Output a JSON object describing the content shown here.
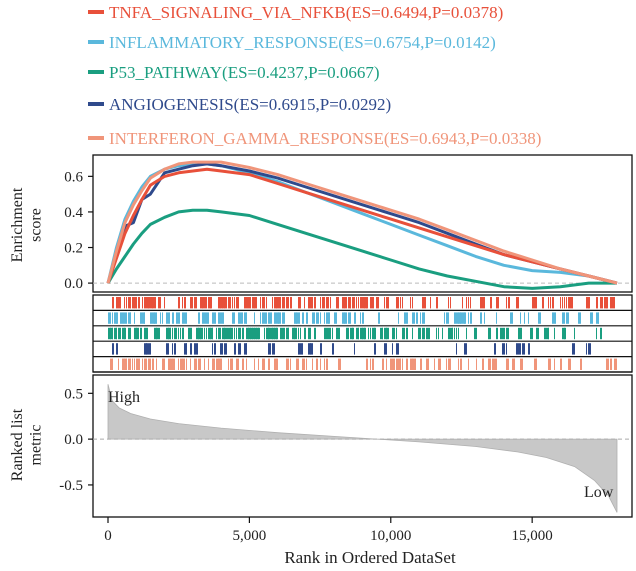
{
  "chart_data": {
    "type": "line",
    "xlabel": "Rank in Ordered DataSet",
    "x_ticks": [
      0,
      5000,
      10000,
      15000
    ],
    "x_tick_labels": [
      "0",
      "5,000",
      "10,000",
      "15,000"
    ],
    "xlim": [
      0,
      18000
    ],
    "panels": {
      "es": {
        "ylabel": [
          "Enrichment",
          "score"
        ],
        "ylim": [
          -0.05,
          0.72
        ],
        "y_ticks": [
          0.0,
          0.2,
          0.4,
          0.6
        ],
        "y_tick_labels": [
          "0.0",
          "0.2",
          "0.4",
          "0.6"
        ]
      },
      "metric": {
        "ylabel": [
          "Ranked list",
          "metric"
        ],
        "ylim": [
          -0.85,
          0.7
        ],
        "y_ticks": [
          0.5,
          0.0,
          -0.5
        ],
        "y_tick_labels": [
          "0.5",
          "0.0",
          "-0.5"
        ],
        "annotations": {
          "high": "High",
          "low": "Low"
        }
      }
    },
    "series": [
      {
        "name": "TNFA_SIGNALING_VIA_NFKB",
        "legend_label": "TNFA_SIGNALING_VIA_NFKB(ES=0.6494,P=0.0378)",
        "color": "#e8503a",
        "es_curve": [
          [
            0,
            0.0
          ],
          [
            300,
            0.14
          ],
          [
            600,
            0.28
          ],
          [
            900,
            0.38
          ],
          [
            1200,
            0.47
          ],
          [
            1500,
            0.55
          ],
          [
            2000,
            0.6
          ],
          [
            2500,
            0.62
          ],
          [
            3000,
            0.63
          ],
          [
            3500,
            0.64
          ],
          [
            4000,
            0.63
          ],
          [
            5000,
            0.61
          ],
          [
            6000,
            0.56
          ],
          [
            7000,
            0.51
          ],
          [
            8000,
            0.46
          ],
          [
            9000,
            0.41
          ],
          [
            10000,
            0.36
          ],
          [
            11000,
            0.31
          ],
          [
            12000,
            0.26
          ],
          [
            13000,
            0.21
          ],
          [
            14000,
            0.16
          ],
          [
            15000,
            0.12
          ],
          [
            16000,
            0.08
          ],
          [
            17000,
            0.04
          ],
          [
            18000,
            0.0
          ]
        ],
        "hit_bar_color": "#e8503a"
      },
      {
        "name": "INFLAMMATORY_RESPONSE",
        "legend_label": "INFLAMMATORY_RESPONSE(ES=0.6754,P=0.0142)",
        "color": "#5ab8dc",
        "es_curve": [
          [
            0,
            0.0
          ],
          [
            300,
            0.2
          ],
          [
            600,
            0.36
          ],
          [
            900,
            0.46
          ],
          [
            1200,
            0.54
          ],
          [
            1500,
            0.6
          ],
          [
            2000,
            0.64
          ],
          [
            2500,
            0.66
          ],
          [
            3000,
            0.67
          ],
          [
            3500,
            0.67
          ],
          [
            4000,
            0.66
          ],
          [
            5000,
            0.62
          ],
          [
            6000,
            0.57
          ],
          [
            7000,
            0.51
          ],
          [
            8000,
            0.45
          ],
          [
            9000,
            0.39
          ],
          [
            10000,
            0.33
          ],
          [
            11000,
            0.27
          ],
          [
            12000,
            0.21
          ],
          [
            13000,
            0.15
          ],
          [
            14000,
            0.1
          ],
          [
            15000,
            0.07
          ],
          [
            16000,
            0.06
          ],
          [
            17000,
            0.04
          ],
          [
            18000,
            0.0
          ]
        ],
        "hit_bar_color": "#5ab8dc"
      },
      {
        "name": "P53_PATHWAY",
        "legend_label": "P53_PATHWAY(ES=0.4237,P=0.0667)",
        "color": "#1a9e80",
        "es_curve": [
          [
            0,
            0.0
          ],
          [
            300,
            0.08
          ],
          [
            600,
            0.15
          ],
          [
            900,
            0.22
          ],
          [
            1200,
            0.28
          ],
          [
            1500,
            0.33
          ],
          [
            2000,
            0.37
          ],
          [
            2500,
            0.4
          ],
          [
            3000,
            0.41
          ],
          [
            3500,
            0.41
          ],
          [
            4000,
            0.4
          ],
          [
            5000,
            0.38
          ],
          [
            6000,
            0.33
          ],
          [
            7000,
            0.28
          ],
          [
            8000,
            0.23
          ],
          [
            9000,
            0.18
          ],
          [
            10000,
            0.13
          ],
          [
            11000,
            0.08
          ],
          [
            12000,
            0.04
          ],
          [
            13000,
            0.01
          ],
          [
            14000,
            -0.02
          ],
          [
            15000,
            -0.03
          ],
          [
            16000,
            -0.02
          ],
          [
            17000,
            0.0
          ],
          [
            18000,
            0.0
          ]
        ],
        "hit_bar_color": "#1a9e80"
      },
      {
        "name": "ANGIOGENESIS",
        "legend_label": "ANGIOGENESIS(ES=0.6915,P=0.0292)",
        "color": "#2f4a8c",
        "es_curve": [
          [
            0,
            0.0
          ],
          [
            300,
            0.15
          ],
          [
            600,
            0.32
          ],
          [
            900,
            0.34
          ],
          [
            1200,
            0.47
          ],
          [
            1500,
            0.5
          ],
          [
            2000,
            0.62
          ],
          [
            2500,
            0.64
          ],
          [
            3000,
            0.66
          ],
          [
            3500,
            0.67
          ],
          [
            4000,
            0.66
          ],
          [
            5000,
            0.63
          ],
          [
            6000,
            0.59
          ],
          [
            7000,
            0.54
          ],
          [
            8000,
            0.49
          ],
          [
            9000,
            0.44
          ],
          [
            10000,
            0.39
          ],
          [
            11000,
            0.34
          ],
          [
            12000,
            0.28
          ],
          [
            13000,
            0.22
          ],
          [
            14000,
            0.16
          ],
          [
            15000,
            0.12
          ],
          [
            16000,
            0.08
          ],
          [
            17000,
            0.04
          ],
          [
            18000,
            0.0
          ]
        ],
        "hit_bar_color": "#2f4a8c"
      },
      {
        "name": "INTERFERON_GAMMA_RESPONSE",
        "legend_label": "INTERFERON_GAMMA_RESPONSE(ES=0.6943,P=0.0338)",
        "color": "#f0957a",
        "es_curve": [
          [
            0,
            0.0
          ],
          [
            300,
            0.18
          ],
          [
            600,
            0.34
          ],
          [
            900,
            0.44
          ],
          [
            1200,
            0.52
          ],
          [
            1500,
            0.59
          ],
          [
            2000,
            0.64
          ],
          [
            2500,
            0.67
          ],
          [
            3000,
            0.68
          ],
          [
            3500,
            0.68
          ],
          [
            4000,
            0.68
          ],
          [
            5000,
            0.65
          ],
          [
            6000,
            0.61
          ],
          [
            7000,
            0.56
          ],
          [
            8000,
            0.51
          ],
          [
            9000,
            0.46
          ],
          [
            10000,
            0.41
          ],
          [
            11000,
            0.36
          ],
          [
            12000,
            0.3
          ],
          [
            13000,
            0.24
          ],
          [
            14000,
            0.18
          ],
          [
            15000,
            0.13
          ],
          [
            16000,
            0.08
          ],
          [
            17000,
            0.04
          ],
          [
            18000,
            0.0
          ]
        ],
        "hit_bar_color": "#f0957a"
      }
    ],
    "ranked_metric": [
      [
        0,
        0.6
      ],
      [
        150,
        0.42
      ],
      [
        400,
        0.34
      ],
      [
        800,
        0.28
      ],
      [
        1500,
        0.22
      ],
      [
        2500,
        0.17
      ],
      [
        4000,
        0.12
      ],
      [
        6000,
        0.07
      ],
      [
        8000,
        0.03
      ],
      [
        9500,
        0.0
      ],
      [
        11000,
        -0.03
      ],
      [
        13000,
        -0.08
      ],
      [
        14500,
        -0.14
      ],
      [
        15500,
        -0.2
      ],
      [
        16500,
        -0.3
      ],
      [
        17200,
        -0.45
      ],
      [
        17700,
        -0.62
      ],
      [
        18000,
        -0.8
      ]
    ]
  }
}
